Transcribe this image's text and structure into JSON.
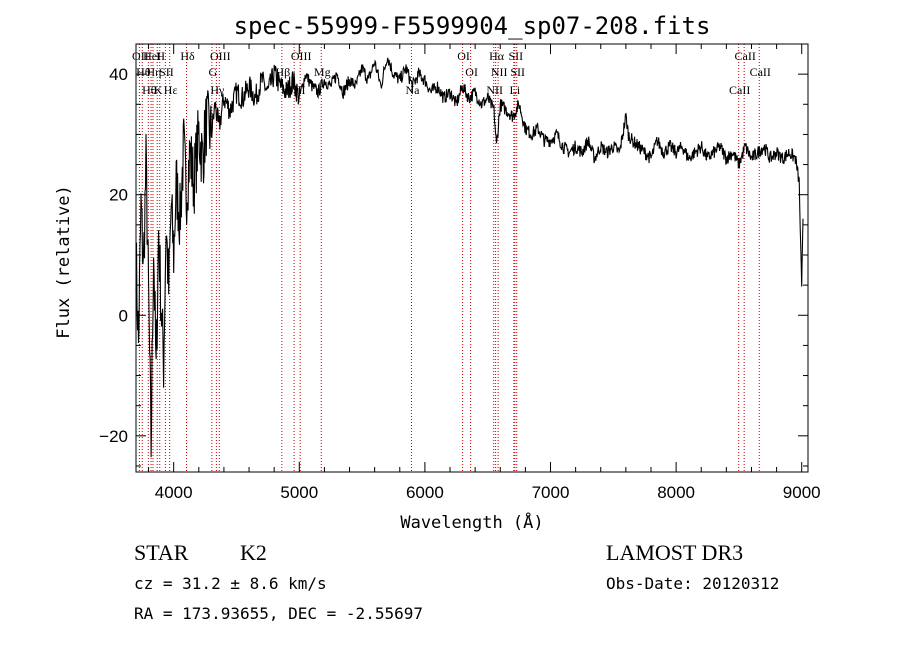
{
  "chart_data": {
    "type": "line",
    "title": "spec-55999-F5599904_sp07-208.fits",
    "xlabel": "Wavelength (Å)",
    "ylabel": "Flux (relative)",
    "xlim": [
      3700,
      9050
    ],
    "ylim": [
      -26,
      45
    ],
    "xticks": [
      4000,
      5000,
      6000,
      7000,
      8000,
      9000
    ],
    "yticks": [
      -20,
      0,
      20,
      40
    ],
    "series": [
      {
        "name": "spectrum",
        "x": [
          3700,
          3720,
          3740,
          3760,
          3780,
          3800,
          3820,
          3840,
          3860,
          3880,
          3900,
          3920,
          3940,
          3960,
          3980,
          4000,
          4020,
          4050,
          4080,
          4100,
          4130,
          4160,
          4200,
          4230,
          4260,
          4300,
          4330,
          4360,
          4400,
          4450,
          4500,
          4550,
          4600,
          4650,
          4700,
          4750,
          4800,
          4850,
          4900,
          4950,
          5000,
          5050,
          5100,
          5150,
          5200,
          5250,
          5300,
          5350,
          5400,
          5450,
          5500,
          5550,
          5600,
          5650,
          5700,
          5750,
          5800,
          5850,
          5900,
          5950,
          6000,
          6050,
          6100,
          6150,
          6200,
          6250,
          6300,
          6350,
          6400,
          6450,
          6500,
          6550,
          6570,
          6600,
          6650,
          6700,
          6750,
          6800,
          6850,
          6900,
          6950,
          7000,
          7050,
          7100,
          7150,
          7200,
          7250,
          7300,
          7350,
          7400,
          7450,
          7500,
          7550,
          7600,
          7620,
          7650,
          7700,
          7750,
          7800,
          7850,
          7900,
          7950,
          8000,
          8050,
          8100,
          8150,
          8200,
          8250,
          8300,
          8350,
          8400,
          8450,
          8500,
          8550,
          8600,
          8650,
          8700,
          8750,
          8800,
          8850,
          8900,
          8950,
          8980,
          9000,
          9010
        ],
        "y": [
          10,
          -5,
          18,
          8,
          25,
          3,
          -22,
          12,
          -10,
          14,
          2,
          -8,
          15,
          4,
          18,
          10,
          22,
          16,
          28,
          20,
          27,
          22,
          30,
          26,
          32,
          30,
          35,
          31,
          36,
          34,
          37,
          36,
          38,
          36,
          39,
          37,
          40,
          38,
          37,
          39,
          36,
          40,
          38,
          37,
          39,
          38,
          40,
          37,
          39,
          38,
          41,
          39,
          42,
          38,
          43,
          40,
          39,
          41,
          38,
          40,
          39,
          37,
          38,
          36,
          37,
          35,
          38,
          36,
          37,
          35,
          36,
          34,
          28,
          35,
          34,
          33,
          35,
          31,
          30,
          31,
          29,
          29,
          30,
          28,
          27,
          28,
          27,
          29,
          26,
          28,
          27,
          28,
          27,
          33,
          30,
          29,
          28,
          27,
          26,
          29,
          27,
          28,
          27,
          28,
          26,
          27,
          28,
          26,
          27,
          28,
          26,
          27,
          25,
          28,
          26,
          27,
          28,
          26,
          27,
          26,
          27,
          26,
          22,
          4,
          16
        ]
      }
    ],
    "spectral_lines": [
      {
        "wavelength": 3727,
        "label": "OII"
      },
      {
        "wavelength": 3750,
        "label": "Hθ"
      },
      {
        "wavelength": 3798,
        "label": "Hθ"
      },
      {
        "wavelength": 3820,
        "label": "HeI"
      },
      {
        "wavelength": 3835,
        "label": "Hη"
      },
      {
        "wavelength": 3869,
        "label": "K"
      },
      {
        "wavelength": 3889,
        "label": "H"
      },
      {
        "wavelength": 3934,
        "label": "SII"
      },
      {
        "wavelength": 3968,
        "label": "Hε"
      },
      {
        "wavelength": 4102,
        "label": "Hδ"
      },
      {
        "wavelength": 4304,
        "label": "G"
      },
      {
        "wavelength": 4340,
        "label": "Hγ"
      },
      {
        "wavelength": 4363,
        "label": "OIII"
      },
      {
        "wavelength": 4861,
        "label": "Hβ"
      },
      {
        "wavelength": 4959,
        "label": "OIII"
      },
      {
        "wavelength": 5007,
        "label": "OIII"
      },
      {
        "wavelength": 5175,
        "label": "Mg"
      },
      {
        "wavelength": 5893,
        "label": "Na"
      },
      {
        "wavelength": 6300,
        "label": "OI"
      },
      {
        "wavelength": 6364,
        "label": "OI"
      },
      {
        "wavelength": 6548,
        "label": "NII"
      },
      {
        "wavelength": 6563,
        "label": "Hα"
      },
      {
        "wavelength": 6583,
        "label": "NII"
      },
      {
        "wavelength": 6708,
        "label": "Li"
      },
      {
        "wavelength": 6716,
        "label": "SII"
      },
      {
        "wavelength": 6731,
        "label": "SII"
      },
      {
        "wavelength": 8498,
        "label": "CaII"
      },
      {
        "wavelength": 8542,
        "label": "CaII"
      },
      {
        "wavelength": 8662,
        "label": "CaII"
      }
    ]
  },
  "info": {
    "object_class": "STAR",
    "subclass": "K2",
    "survey": "LAMOST DR3",
    "redshift": "cz = 31.2 ± 8.6 km/s",
    "obs_date": "Obs-Date: 20120312",
    "coordinates": "RA = 173.93655, DEC =  -2.55697"
  },
  "colors": {
    "line_marker": "#cc0000",
    "spectrum": "#000000"
  }
}
